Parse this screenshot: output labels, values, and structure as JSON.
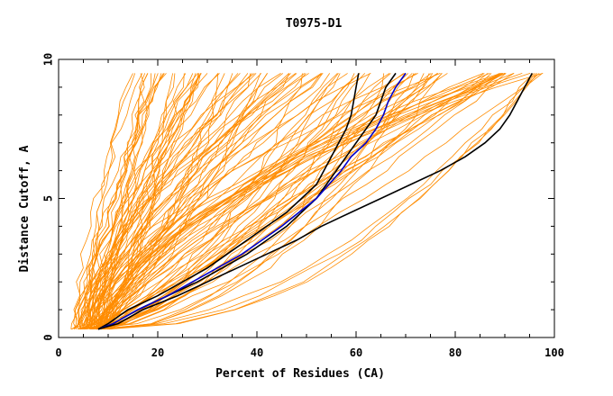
{
  "chart_data": {
    "type": "line",
    "title": "T0975-D1",
    "xlabel": "Percent of Residues (CA)",
    "ylabel": "Distance Cutoff, A",
    "xlim": [
      0,
      100
    ],
    "ylim": [
      0,
      10
    ],
    "x_ticks": [
      0,
      20,
      40,
      60,
      80,
      100
    ],
    "y_ticks": [
      0,
      5,
      10
    ],
    "grid": false,
    "legend": "none",
    "y_values": [
      0.3,
      0.5,
      1,
      1.5,
      2,
      2.5,
      3,
      3.5,
      4,
      4.5,
      5,
      5.5,
      6,
      6.5,
      7,
      7.5,
      8,
      8.5,
      9,
      9.5
    ],
    "colors": {
      "group": "#ff8c00",
      "highlight_black": "#000000",
      "highlight_blue": "#0000cc"
    },
    "highlight_series": [
      {
        "color": "black",
        "x": [
          8,
          10,
          14,
          20,
          25,
          30,
          34,
          38,
          42,
          46,
          49,
          52,
          53.5,
          55,
          56.5,
          58,
          59,
          59.5,
          60,
          60.5
        ]
      },
      {
        "color": "black",
        "x": [
          8,
          11,
          16,
          22,
          28,
          33,
          38,
          42,
          46,
          49,
          52,
          54,
          56,
          58,
          60,
          62,
          64,
          65,
          66,
          68
        ]
      },
      {
        "color": "blue",
        "x": [
          8,
          11,
          16,
          22,
          27,
          32,
          37,
          41,
          45,
          48.5,
          52,
          54.5,
          57,
          59,
          62,
          64,
          65.5,
          66.5,
          68,
          70
        ]
      },
      {
        "color": "black",
        "x": [
          8,
          12,
          17,
          24,
          30,
          36,
          42,
          48,
          53,
          59,
          65,
          71,
          77,
          82,
          86,
          89,
          91,
          92.5,
          94,
          95.5
        ]
      }
    ]
  }
}
